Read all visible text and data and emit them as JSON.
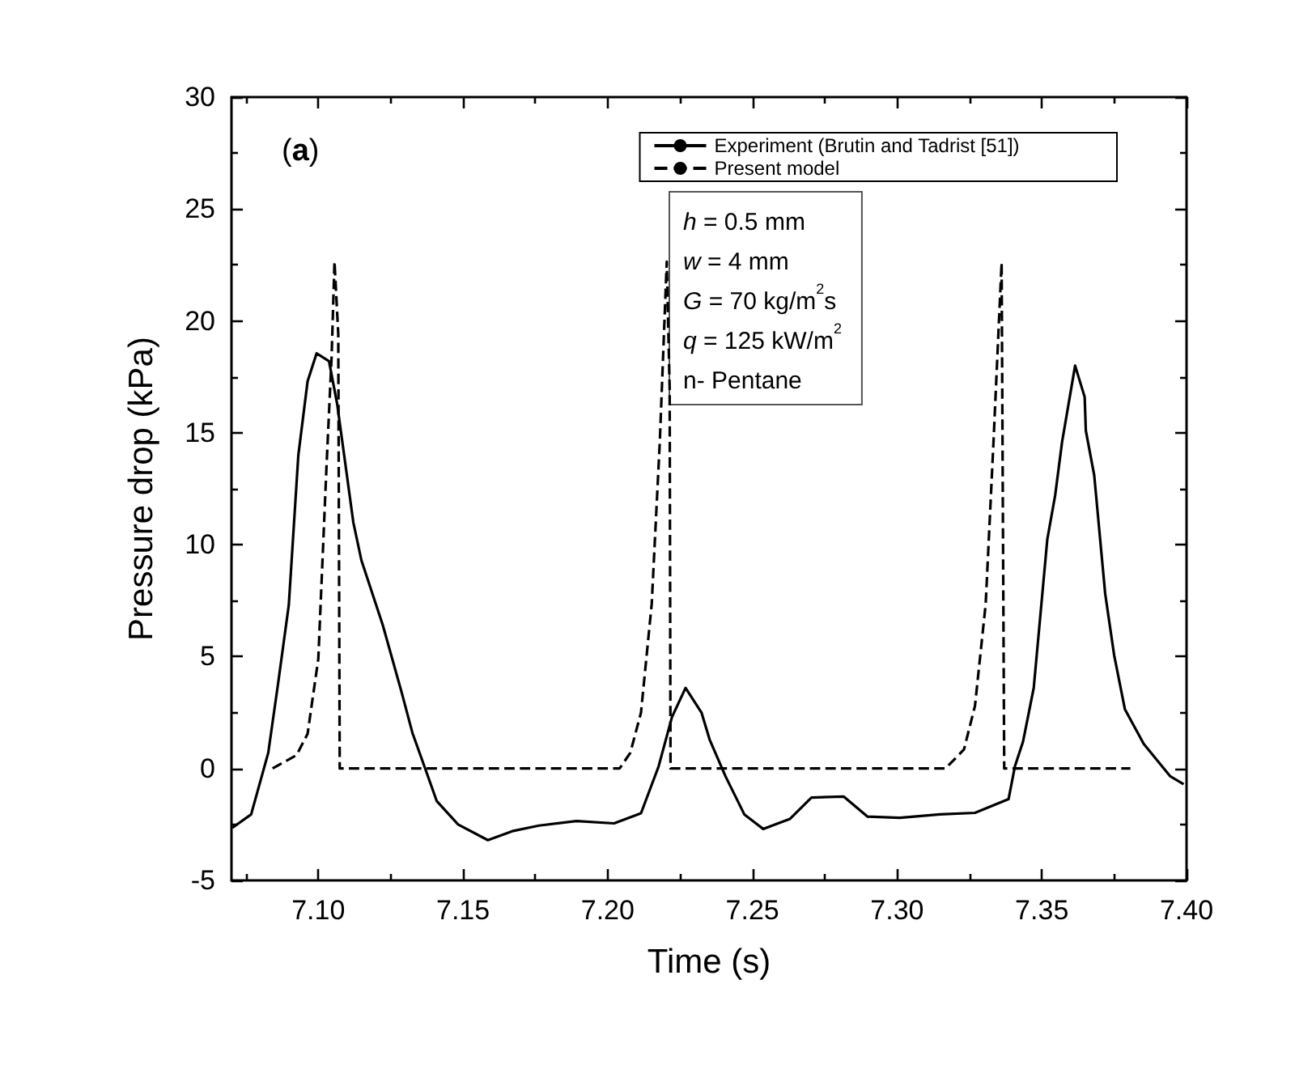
{
  "chart_data": {
    "type": "line",
    "xlabel": "Time (s)",
    "ylabel": "Pressure drop (kPa)",
    "annotations": [
      "(a)",
      "h = 0.5 mm",
      "w = 4 mm",
      "G = 70 kg/m$^{2}$s",
      "q = 125 kW/m$^{2}$",
      "n- Pentane"
    ],
    "series": [
      {
        "name": "Experiment (Brutin and Tadrist [51])",
        "color": "#000000",
        "line_style": "solid",
        "x": [
          7.0703,
          7.0768,
          7.0827,
          7.086,
          7.0898,
          7.0931,
          7.0963,
          7.0994,
          7.1037,
          7.1065,
          7.1121,
          7.1149,
          7.1223,
          7.1288,
          7.1325,
          7.1372,
          7.1409,
          7.1483,
          7.1586,
          7.167,
          7.1762,
          7.1892,
          7.2022,
          7.2115,
          7.2176,
          7.2222,
          7.2269,
          7.2324,
          7.2352,
          7.2407,
          7.2472,
          7.2537,
          7.263,
          7.2704,
          7.2815,
          7.2898,
          7.3009,
          7.3148,
          7.3269,
          7.3385,
          7.3407,
          7.3435,
          7.3472,
          7.3519,
          7.3546,
          7.357,
          7.3615,
          7.3648,
          7.3652,
          7.3681,
          7.3719,
          7.375,
          7.3787,
          7.3852,
          7.3944,
          7.399
        ],
        "values": [
          -2.65,
          -2.05,
          0.7,
          3.7,
          7.3,
          14.0,
          17.3,
          18.55,
          18.2,
          16.3,
          11.0,
          9.3,
          6.4,
          3.4,
          1.6,
          -0.1,
          -1.45,
          -2.5,
          -3.2,
          -2.8,
          -2.55,
          -2.35,
          -2.45,
          -2.0,
          0.1,
          2.3,
          3.6,
          2.5,
          1.3,
          -0.35,
          -2.05,
          -2.7,
          -2.25,
          -1.3,
          -1.25,
          -2.15,
          -2.2,
          -2.05,
          -1.98,
          -1.37,
          0.1,
          1.2,
          3.6,
          10.25,
          12.2,
          14.6,
          18.0,
          16.6,
          15.1,
          13.1,
          7.8,
          5.05,
          2.65,
          1.1,
          -0.35,
          -0.7
        ]
      },
      {
        "name": "Present model",
        "color": "#000000",
        "line_style": "dashed",
        "x": [
          7.0842,
          7.0925,
          7.0963,
          7.1,
          7.1028,
          7.1046,
          7.1056,
          7.1069,
          7.1074,
          7.2041,
          7.2078,
          7.2115,
          7.2152,
          7.218,
          7.2204,
          7.2214,
          7.2217,
          7.3167,
          7.3231,
          7.3269,
          7.3306,
          7.3333,
          7.3361,
          7.337,
          7.3806
        ],
        "values": [
          0,
          0.6,
          1.55,
          4.9,
          13.4,
          18.4,
          22.65,
          19.4,
          0,
          0,
          0.7,
          2.5,
          7.35,
          14.6,
          22.65,
          17,
          0,
          0,
          0.85,
          2.8,
          7.35,
          14.6,
          22.6,
          0,
          0
        ]
      }
    ],
    "xlim": [
      7.07,
      7.4
    ],
    "xticks": [
      {
        "value": 7.075,
        "label": null
      },
      {
        "value": 7.1,
        "label": "7.10"
      },
      {
        "value": 7.125,
        "label": null
      },
      {
        "value": 7.15,
        "label": "7.15"
      },
      {
        "value": 7.175,
        "label": null
      },
      {
        "value": 7.2,
        "label": "7.20"
      },
      {
        "value": 7.225,
        "label": null
      },
      {
        "value": 7.25,
        "label": "7.25"
      },
      {
        "value": 7.275,
        "label": null
      },
      {
        "value": 7.3,
        "label": "7.30"
      },
      {
        "value": 7.325,
        "label": null
      },
      {
        "value": 7.35,
        "label": "7.35"
      },
      {
        "value": 7.375,
        "label": null
      },
      {
        "value": 7.4,
        "label": "7.40"
      }
    ],
    "ylim": [
      -5,
      30
    ],
    "yticks": [
      -5,
      {
        "value": -2.5,
        "label": null
      },
      0,
      {
        "value": 2.5,
        "label": null
      },
      5,
      {
        "value": 7.5,
        "label": null
      },
      10,
      {
        "value": 12.5,
        "label": null
      },
      15,
      {
        "value": 17.5,
        "label": null
      },
      20,
      {
        "value": 22.5,
        "label": null
      },
      25,
      {
        "value": 27.5,
        "label": null
      },
      30
    ],
    "legend": "top right",
    "marker": "none",
    "grid": false
  }
}
